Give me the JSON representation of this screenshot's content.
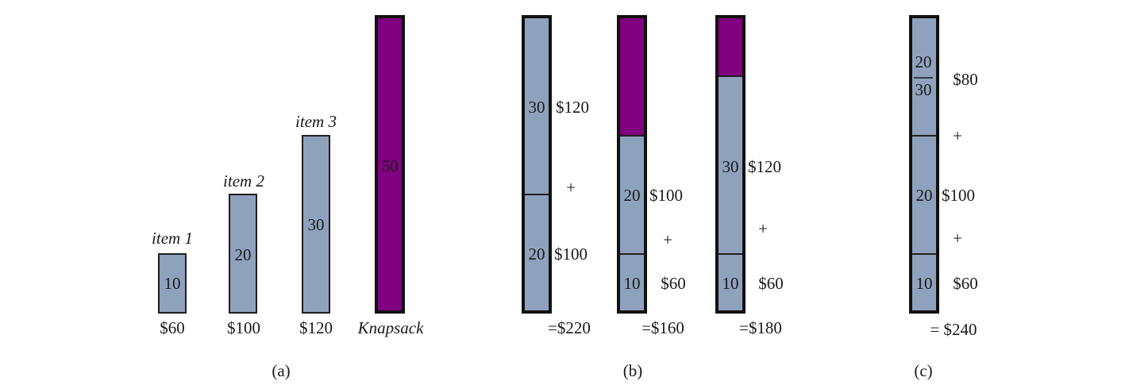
{
  "colors": {
    "item_fill": "#8fa2bd",
    "knapsack_fill": "#800080",
    "stroke": "#1f1f1f"
  },
  "panel_a": {
    "items": [
      {
        "name": "item 1",
        "weight": "10",
        "value": "$60"
      },
      {
        "name": "item 2",
        "weight": "20",
        "value": "$100"
      },
      {
        "name": "item 3",
        "weight": "30",
        "value": "$120"
      }
    ],
    "knapsack": {
      "capacity": "50",
      "label": "Knapsack"
    },
    "caption": "(a)"
  },
  "panel_b": {
    "solutions": [
      {
        "segments": [
          {
            "weight": "30",
            "value": "$120"
          },
          {
            "weight": "20",
            "value": "$100"
          }
        ],
        "plus": "+",
        "total": "=$220"
      },
      {
        "empty_space": true,
        "segments": [
          {
            "weight": "20",
            "value": "$100"
          },
          {
            "weight": "10",
            "value": "$60"
          }
        ],
        "plus": "+",
        "total": "=$160"
      },
      {
        "empty_space": true,
        "segments": [
          {
            "weight": "30",
            "value": "$120"
          },
          {
            "weight": "10",
            "value": "$60"
          }
        ],
        "plus": "+",
        "total": "=$180"
      }
    ],
    "caption": "(b)"
  },
  "panel_c": {
    "fraction": {
      "numerator": "20",
      "denominator": "30",
      "value": "$80"
    },
    "segments": [
      {
        "weight": "20",
        "value": "$100"
      },
      {
        "weight": "10",
        "value": "$60"
      }
    ],
    "plus_1": "+",
    "plus_2": "+",
    "total": "= $240",
    "caption": "(c)"
  }
}
